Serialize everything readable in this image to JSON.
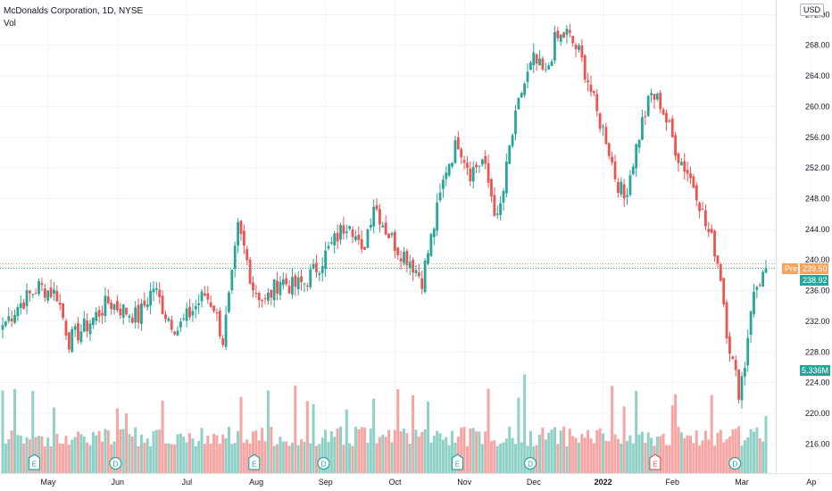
{
  "legend": {
    "symbol_line": "McDonalds Corporation, 1D, NYSE",
    "volume_label": "Vol"
  },
  "currency": "USD",
  "price_axis_top_fragment": "2",
  "tags": {
    "pre_label": "Pre",
    "pre_price": "239.50",
    "last_price": "238.92",
    "volume_value": "5.336M"
  },
  "colors": {
    "up": "#26a69a",
    "down": "#ef5350",
    "up_vol": "#8fd0c7",
    "down_vol": "#f6a5a3",
    "pre": "#f7a35c",
    "last": "#26a69a",
    "grid": "#f0f3fa"
  },
  "chart_data": {
    "type": "candlestick",
    "y_ticks": [
      "216.00",
      "220.00",
      "224.00",
      "228.00",
      "232.00",
      "236.00",
      "240.00",
      "244.00",
      "248.00",
      "252.00",
      "256.00",
      "260.00",
      "264.00",
      "268.00",
      "272.00"
    ],
    "ylim": [
      212.2,
      273.9
    ],
    "x_labels": [
      {
        "text": "May",
        "month": 0
      },
      {
        "text": "Jun",
        "month": 1
      },
      {
        "text": "Jul",
        "month": 2
      },
      {
        "text": "Aug",
        "month": 3
      },
      {
        "text": "Sep",
        "month": 4
      },
      {
        "text": "Oct",
        "month": 5
      },
      {
        "text": "Nov",
        "month": 6
      },
      {
        "text": "Dec",
        "month": 7
      },
      {
        "text": "2022",
        "month": 8,
        "bold": true
      },
      {
        "text": "Feb",
        "month": 9
      },
      {
        "text": "Mar",
        "month": 10
      },
      {
        "text": "Ap",
        "month": 11
      }
    ],
    "event_markers": [
      {
        "letter": "E",
        "kind": "earnings",
        "month": -0.2,
        "color": "#26a69a"
      },
      {
        "letter": "D",
        "kind": "dividend",
        "month": 0.97,
        "color": "#26a69a"
      },
      {
        "letter": "E",
        "kind": "earnings",
        "month": 2.97,
        "color": "#26a69a"
      },
      {
        "letter": "D",
        "kind": "dividend",
        "month": 3.97,
        "color": "#26a69a"
      },
      {
        "letter": "E",
        "kind": "earnings",
        "month": 5.9,
        "color": "#26a69a"
      },
      {
        "letter": "D",
        "kind": "dividend",
        "month": 6.95,
        "color": "#26a69a"
      },
      {
        "letter": "E",
        "kind": "earnings",
        "month": 8.75,
        "color": "#ef5350"
      },
      {
        "letter": "D",
        "kind": "dividend",
        "month": 9.9,
        "color": "#26a69a"
      }
    ],
    "anchors": [
      [
        0,
        231.5
      ],
      [
        5,
        234
      ],
      [
        12,
        236.5
      ],
      [
        18,
        235.5
      ],
      [
        22,
        229.5
      ],
      [
        28,
        231.5
      ],
      [
        35,
        234.5
      ],
      [
        40,
        233.5
      ],
      [
        45,
        232.5
      ],
      [
        50,
        236.5
      ],
      [
        54,
        233
      ],
      [
        58,
        231
      ],
      [
        63,
        233.5
      ],
      [
        67,
        235.5
      ],
      [
        70,
        234
      ],
      [
        73,
        229.5
      ],
      [
        76,
        237.5
      ],
      [
        78,
        244
      ],
      [
        80,
        241.5
      ],
      [
        83,
        236.5
      ],
      [
        87,
        234.5
      ],
      [
        92,
        237.5
      ],
      [
        96,
        236.5
      ],
      [
        100,
        237
      ],
      [
        105,
        239.5
      ],
      [
        110,
        242.5
      ],
      [
        115,
        245.5
      ],
      [
        119,
        240.5
      ],
      [
        123,
        247.5
      ],
      [
        127,
        244
      ],
      [
        131,
        241.5
      ],
      [
        135,
        240
      ],
      [
        139,
        237.5
      ],
      [
        143,
        244.5
      ],
      [
        147,
        252
      ],
      [
        151,
        255.5
      ],
      [
        155,
        251.5
      ],
      [
        159,
        253
      ],
      [
        162,
        248.5
      ],
      [
        164,
        245
      ],
      [
        166,
        249
      ],
      [
        168,
        254.5
      ],
      [
        172,
        262
      ],
      [
        176,
        266
      ],
      [
        180,
        264
      ],
      [
        183,
        268.5
      ],
      [
        187,
        269.5
      ],
      [
        191,
        267
      ],
      [
        194,
        263.5
      ],
      [
        197,
        259
      ],
      [
        200,
        256
      ],
      [
        203,
        251
      ],
      [
        206,
        248
      ],
      [
        209,
        253
      ],
      [
        212,
        258
      ],
      [
        215,
        261.5
      ],
      [
        218,
        260.5
      ],
      [
        221,
        257
      ],
      [
        224,
        253.5
      ],
      [
        227,
        251.5
      ],
      [
        230,
        249
      ],
      [
        233,
        244.5
      ],
      [
        236,
        241.5
      ],
      [
        238,
        238
      ],
      [
        240,
        231
      ],
      [
        242,
        226.5
      ],
      [
        244,
        223
      ],
      [
        246,
        226.5
      ],
      [
        248,
        234
      ],
      [
        250,
        236.5
      ],
      [
        253,
        238.92
      ]
    ],
    "volume": {
      "ylim": [
        0,
        16
      ],
      "current": 5.336,
      "note": "volume in millions"
    }
  }
}
